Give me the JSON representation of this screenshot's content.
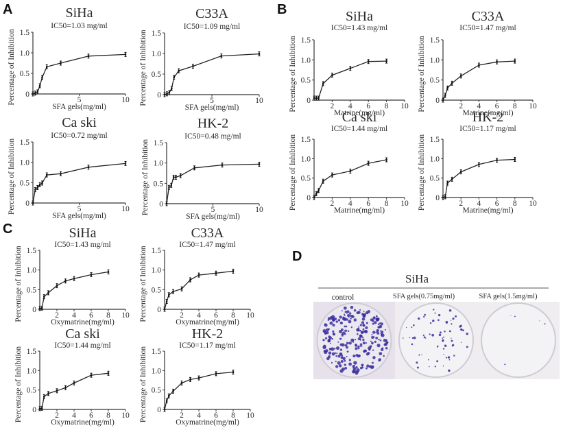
{
  "panels": [
    {
      "letter": "A"
    },
    {
      "letter": "B"
    },
    {
      "letter": "C"
    },
    {
      "letter": "D"
    }
  ],
  "colony_assay": {
    "title": "SiHa",
    "labels": [
      "control",
      "SFA gels(0.75mg/ml)",
      "SFA gels(1.5mg/ml)"
    ],
    "colony_density": [
      "high",
      "medium",
      "very low"
    ],
    "stain_color": "#3b2f9e"
  },
  "chart_data": [
    {
      "type": "line",
      "panel": "A",
      "title": "SiHa",
      "subtitle": "IC50=1.03 mg/ml",
      "xlabel": "SFA gels(mg/ml)",
      "ylabel": "Percentage of Inhibition",
      "xlim": [
        0,
        10
      ],
      "ylim": [
        0,
        1.5
      ],
      "xticks": [
        5,
        10
      ],
      "xtick_labels": [
        "5",
        "10"
      ],
      "yticks": [
        0,
        0.5,
        1.0,
        1.5
      ],
      "ytick_labels": [
        "0",
        "0.5",
        "1.0",
        "1.5"
      ],
      "x": [
        0,
        0.25,
        0.5,
        0.75,
        1,
        1.5,
        3,
        6,
        10
      ],
      "y": [
        0,
        0.02,
        0.05,
        0.2,
        0.4,
        0.66,
        0.75,
        0.92,
        0.96
      ]
    },
    {
      "type": "line",
      "panel": "A",
      "title": "C33A",
      "subtitle": "IC50=1.09 mg/ml",
      "xlabel": "SFA gels(mg/ml)",
      "ylabel": "Percentage of Inhibition",
      "xlim": [
        0,
        10
      ],
      "ylim": [
        0,
        1.5
      ],
      "xticks": [
        5,
        10
      ],
      "xtick_labels": [
        "5",
        "10"
      ],
      "yticks": [
        0,
        0.5,
        1.0,
        1.5
      ],
      "ytick_labels": [
        "0",
        "0.5",
        "1.0",
        "1.5"
      ],
      "x": [
        0,
        0.25,
        0.5,
        0.75,
        1,
        1.5,
        3,
        6,
        10
      ],
      "y": [
        0,
        0.02,
        0.05,
        0.15,
        0.42,
        0.58,
        0.69,
        0.94,
        0.99
      ]
    },
    {
      "type": "line",
      "panel": "A",
      "title": "Ca ski",
      "subtitle": "IC50=0.72 mg/ml",
      "xlabel": "SFA gels(mg/ml)",
      "ylabel": "Percentage of Inhibition",
      "xlim": [
        0,
        10
      ],
      "ylim": [
        0,
        1.5
      ],
      "xticks": [
        5,
        10
      ],
      "xtick_labels": [
        "5",
        "10"
      ],
      "yticks": [
        0,
        0.5,
        1.0,
        1.5
      ],
      "ytick_labels": [
        "0",
        "0.5",
        "1.0",
        "1.5"
      ],
      "x": [
        0,
        0.25,
        0.5,
        0.75,
        1,
        1.5,
        3,
        6,
        10
      ],
      "y": [
        0,
        0.33,
        0.38,
        0.45,
        0.49,
        0.69,
        0.72,
        0.88,
        0.97
      ]
    },
    {
      "type": "line",
      "panel": "A",
      "title": "HK-2",
      "subtitle": "IC50=0.48 mg/ml",
      "xlabel": "SFA gels(mg/ml)",
      "ylabel": "Percentage of Inhibition",
      "xlim": [
        0,
        10
      ],
      "ylim": [
        0,
        1.5
      ],
      "xticks": [
        5,
        10
      ],
      "xtick_labels": [
        "5",
        "10"
      ],
      "yticks": [
        0,
        0.5,
        1.0,
        1.5
      ],
      "ytick_labels": [
        "0",
        "0.5",
        "1.0",
        "1.5"
      ],
      "x": [
        0,
        0.25,
        0.5,
        0.75,
        1,
        1.5,
        3,
        6,
        10
      ],
      "y": [
        0,
        0.4,
        0.45,
        0.65,
        0.65,
        0.69,
        0.88,
        0.95,
        0.97
      ]
    },
    {
      "type": "line",
      "panel": "B",
      "title": "SiHa",
      "subtitle": "IC50=1.43 mg/ml",
      "xlabel": "Matrine(mg/ml)",
      "ylabel": "Percentage of Inhibition",
      "xlim": [
        0,
        10
      ],
      "ylim": [
        0,
        1.5
      ],
      "xticks": [
        2,
        4,
        6,
        8,
        10
      ],
      "xtick_labels": [
        "2",
        "4",
        "6",
        "8",
        "10"
      ],
      "yticks": [
        0,
        0.5,
        1.0,
        1.5
      ],
      "ytick_labels": [
        "0",
        "0.5",
        "1.0",
        "1.5"
      ],
      "x": [
        0,
        0.25,
        0.5,
        1,
        2,
        4,
        6,
        8
      ],
      "y": [
        0.05,
        0.05,
        0.05,
        0.41,
        0.62,
        0.79,
        0.96,
        0.97
      ]
    },
    {
      "type": "line",
      "panel": "B",
      "title": "C33A",
      "subtitle": "IC50=1.47 mg/ml",
      "xlabel": "Matrine(mg/ml)",
      "ylabel": "Percentage of Inhibition",
      "xlim": [
        0,
        10
      ],
      "ylim": [
        0,
        1.5
      ],
      "xticks": [
        2,
        4,
        6,
        8,
        10
      ],
      "xtick_labels": [
        "2",
        "4",
        "6",
        "8",
        "10"
      ],
      "yticks": [
        0,
        0.5,
        1.0,
        1.5
      ],
      "ytick_labels": [
        "0",
        "0.5",
        "1.0",
        "1.5"
      ],
      "x": [
        0,
        0.25,
        0.5,
        1,
        2,
        4,
        6,
        8
      ],
      "y": [
        0,
        0.12,
        0.3,
        0.42,
        0.6,
        0.87,
        0.95,
        0.97
      ]
    },
    {
      "type": "line",
      "panel": "B",
      "title": "Ca ski",
      "subtitle": "IC50=1.44 mg/ml",
      "xlabel": "Matrine(mg/ml)",
      "ylabel": "Percentage of Inhibition",
      "xlim": [
        0,
        10
      ],
      "ylim": [
        0,
        1.5
      ],
      "xticks": [
        2,
        4,
        6,
        8,
        10
      ],
      "xtick_labels": [
        "2",
        "4",
        "6",
        "8",
        "10"
      ],
      "yticks": [
        0,
        0.5,
        1.0,
        1.5
      ],
      "ytick_labels": [
        "0",
        "0.5",
        "1.0",
        "1.5"
      ],
      "x": [
        0,
        0.25,
        0.5,
        1,
        2,
        4,
        6,
        8
      ],
      "y": [
        0,
        0.1,
        0.18,
        0.42,
        0.58,
        0.68,
        0.88,
        0.97
      ]
    },
    {
      "type": "line",
      "panel": "B",
      "title": "HK-2",
      "subtitle": "IC50=1.17 mg/ml",
      "xlabel": "Matrine(mg/ml)",
      "ylabel": "Percentage of Inhibition",
      "xlim": [
        0,
        10
      ],
      "ylim": [
        0,
        1.5
      ],
      "xticks": [
        2,
        4,
        6,
        8,
        10
      ],
      "xtick_labels": [
        "2",
        "4",
        "6",
        "8",
        "10"
      ],
      "yticks": [
        0,
        0.5,
        1.0,
        1.5
      ],
      "ytick_labels": [
        "0",
        "0.5",
        "1.0",
        "1.5"
      ],
      "x": [
        0,
        0.25,
        0.5,
        1,
        2,
        4,
        6,
        8
      ],
      "y": [
        0,
        0.02,
        0.37,
        0.47,
        0.66,
        0.85,
        0.96,
        0.98
      ]
    },
    {
      "type": "line",
      "panel": "C",
      "title": "SiHa",
      "subtitle": "IC50=1.43 mg/ml",
      "xlabel": "Oxymatrine(mg/ml)",
      "ylabel": "Percentage of Inhibition",
      "xlim": [
        0,
        10
      ],
      "ylim": [
        0,
        1.5
      ],
      "xticks": [
        2,
        4,
        6,
        8,
        10
      ],
      "xtick_labels": [
        "2",
        "4",
        "6",
        "8",
        "10"
      ],
      "yticks": [
        0,
        0.5,
        1.0,
        1.5
      ],
      "ytick_labels": [
        "0",
        "0.5",
        "1.0",
        "1.5"
      ],
      "x": [
        0,
        0.25,
        0.5,
        1,
        2,
        3,
        4,
        6,
        8
      ],
      "y": [
        0.02,
        0.03,
        0.32,
        0.42,
        0.6,
        0.72,
        0.78,
        0.88,
        0.95
      ]
    },
    {
      "type": "line",
      "panel": "C",
      "title": "C33A",
      "subtitle": "IC50=1.47 mg/ml",
      "xlabel": "Oxymatrine(mg/ml)",
      "ylabel": "Percentage of Inhibition",
      "xlim": [
        0,
        10
      ],
      "ylim": [
        0,
        1.5
      ],
      "xticks": [
        2,
        4,
        6,
        8,
        10
      ],
      "xtick_labels": [
        "2",
        "4",
        "6",
        "8",
        "10"
      ],
      "yticks": [
        0,
        0.5,
        1.0,
        1.5
      ],
      "ytick_labels": [
        "0",
        "0.5",
        "1.0",
        "1.5"
      ],
      "x": [
        0,
        0.25,
        0.5,
        1,
        2,
        3,
        4,
        6,
        8
      ],
      "y": [
        0,
        0.2,
        0.37,
        0.45,
        0.52,
        0.75,
        0.87,
        0.92,
        0.97
      ]
    },
    {
      "type": "line",
      "panel": "C",
      "title": "Ca ski",
      "subtitle": "IC50=1.44 mg/ml",
      "xlabel": "Oxymatrine(mg/ml)",
      "ylabel": "Percentage of Inhibition",
      "xlim": [
        0,
        10
      ],
      "ylim": [
        0,
        1.5
      ],
      "xticks": [
        2,
        4,
        6,
        8,
        10
      ],
      "xtick_labels": [
        "2",
        "4",
        "6",
        "8",
        "10"
      ],
      "yticks": [
        0,
        0.5,
        1.0,
        1.5
      ],
      "ytick_labels": [
        "0",
        "0.5",
        "1.0",
        "1.5"
      ],
      "x": [
        0,
        0.25,
        0.5,
        1,
        2,
        3,
        4,
        6,
        8
      ],
      "y": [
        0.02,
        0.03,
        0.33,
        0.41,
        0.48,
        0.56,
        0.68,
        0.88,
        0.93
      ]
    },
    {
      "type": "line",
      "panel": "C",
      "title": "HK-2",
      "subtitle": "IC50=1.17 mg/ml",
      "xlabel": "Oxymatrine(mg/ml)",
      "ylabel": "Percentage of Inhibition",
      "xlim": [
        0,
        10
      ],
      "ylim": [
        0,
        1.5
      ],
      "xticks": [
        2,
        4,
        6,
        8,
        10
      ],
      "xtick_labels": [
        "2",
        "4",
        "6",
        "8",
        "10"
      ],
      "yticks": [
        0,
        0.5,
        1.0,
        1.5
      ],
      "ytick_labels": [
        "0",
        "0.5",
        "1.0",
        "1.5"
      ],
      "x": [
        0,
        0.25,
        0.5,
        1,
        2,
        3,
        4,
        6,
        8
      ],
      "y": [
        0,
        0.22,
        0.35,
        0.47,
        0.68,
        0.77,
        0.81,
        0.92,
        0.96
      ]
    }
  ]
}
